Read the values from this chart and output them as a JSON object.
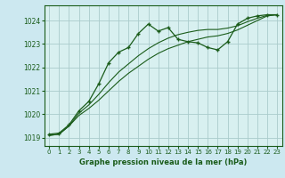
{
  "title": "Graphe pression niveau de la mer (hPa)",
  "background_color": "#cce8f0",
  "plot_bg_color": "#d8f0f0",
  "grid_color": "#aacccc",
  "line_color": "#1a5c1a",
  "marker_color": "#1a5c1a",
  "xlim": [
    -0.5,
    23.5
  ],
  "ylim": [
    1018.65,
    1024.65
  ],
  "xticks": [
    0,
    1,
    2,
    3,
    4,
    5,
    6,
    7,
    8,
    9,
    10,
    11,
    12,
    13,
    14,
    15,
    16,
    17,
    18,
    19,
    20,
    21,
    22,
    23
  ],
  "yticks": [
    1019,
    1020,
    1021,
    1022,
    1023,
    1024
  ],
  "series1_x": [
    0,
    1,
    2,
    3,
    4,
    5,
    6,
    7,
    8,
    9,
    10,
    11,
    12,
    13,
    14,
    15,
    16,
    17,
    18,
    19,
    20,
    21,
    22,
    23
  ],
  "series1_y": [
    1019.15,
    1019.2,
    1019.55,
    1020.15,
    1020.55,
    1021.3,
    1022.2,
    1022.65,
    1022.85,
    1023.45,
    1023.85,
    1023.55,
    1023.7,
    1023.2,
    1023.1,
    1023.05,
    1022.85,
    1022.75,
    1023.1,
    1023.85,
    1024.1,
    1024.2,
    1024.25,
    1024.25
  ],
  "series2_x": [
    0,
    1,
    2,
    3,
    4,
    5,
    6,
    7,
    8,
    9,
    10,
    11,
    12,
    13,
    14,
    15,
    16,
    17,
    18,
    19,
    20,
    21,
    22,
    23
  ],
  "series2_y": [
    1019.1,
    1019.15,
    1019.5,
    1019.95,
    1020.25,
    1020.6,
    1021.0,
    1021.4,
    1021.75,
    1022.05,
    1022.35,
    1022.6,
    1022.8,
    1022.95,
    1023.1,
    1023.2,
    1023.3,
    1023.35,
    1023.45,
    1023.6,
    1023.8,
    1024.0,
    1024.2,
    1024.25
  ],
  "series3_x": [
    0,
    1,
    2,
    3,
    4,
    5,
    6,
    7,
    8,
    9,
    10,
    11,
    12,
    13,
    14,
    15,
    16,
    17,
    18,
    19,
    20,
    21,
    22,
    23
  ],
  "series3_y": [
    1019.1,
    1019.15,
    1019.5,
    1020.05,
    1020.4,
    1020.85,
    1021.35,
    1021.8,
    1022.15,
    1022.5,
    1022.8,
    1023.05,
    1023.25,
    1023.4,
    1023.5,
    1023.58,
    1023.62,
    1023.62,
    1023.68,
    1023.78,
    1023.95,
    1024.1,
    1024.22,
    1024.25
  ]
}
